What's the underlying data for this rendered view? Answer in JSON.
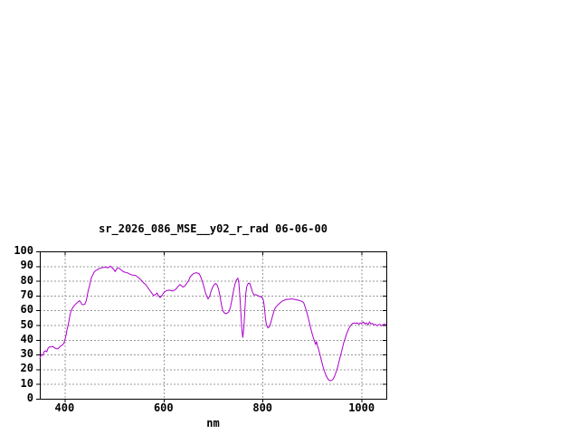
{
  "window": {
    "background_color": "#ffffff"
  },
  "chart_data": {
    "type": "line",
    "title": "sr_2026_086_MSE__y02_r_rad 06-06-00",
    "xlabel": "nm",
    "ylabel": "",
    "xlim": [
      350,
      1050
    ],
    "ylim": [
      0,
      100
    ],
    "x_ticks": [
      400,
      600,
      800,
      1000
    ],
    "x_tick_labels": [
      "400",
      "600",
      "800",
      "1000"
    ],
    "y_ticks": [
      0,
      10,
      20,
      30,
      40,
      50,
      60,
      70,
      80,
      90,
      100
    ],
    "y_tick_labels": [
      "0",
      "10",
      "20",
      "30",
      "40",
      "50",
      "60",
      "70",
      "80",
      "90",
      "100"
    ],
    "grid": true,
    "grid_color": "#999999",
    "frame_color": "#000000",
    "line_color": "#aa00cc",
    "series": [
      {
        "x": [
          350,
          353,
          356,
          359,
          362,
          364,
          367,
          370,
          373,
          376,
          379,
          383,
          387,
          390,
          393,
          396,
          399,
          401,
          403,
          405,
          407,
          409,
          411,
          413,
          415,
          418,
          421,
          424,
          427,
          430,
          432,
          435,
          438,
          441,
          444,
          446,
          448,
          450,
          452,
          454,
          457,
          460,
          463,
          466,
          469,
          472,
          475,
          478,
          481,
          484,
          487,
          490,
          493,
          496,
          499,
          502,
          505,
          508,
          511,
          514,
          517,
          520,
          524,
          528,
          532,
          536,
          540,
          544,
          548,
          552,
          556,
          560,
          564,
          568,
          572,
          576,
          580,
          584,
          587,
          590,
          593,
          596,
          600,
          603,
          606,
          609,
          612,
          615,
          618,
          621,
          624,
          627,
          630,
          633,
          636,
          639,
          642,
          645,
          648,
          651,
          654,
          657,
          660,
          663,
          666,
          669,
          672,
          675,
          678,
          681,
          684,
          687,
          690,
          693,
          696,
          699,
          702,
          705,
          708,
          711,
          714,
          717,
          720,
          723,
          726,
          729,
          732,
          735,
          738,
          741,
          744,
          747,
          750,
          752,
          754,
          756,
          758,
          760,
          762,
          764,
          766,
          768,
          771,
          774,
          777,
          780,
          783,
          786,
          789,
          792,
          795,
          798,
          800,
          802,
          804,
          806,
          808,
          811,
          814,
          817,
          820,
          823,
          826,
          829,
          832,
          836,
          840,
          844,
          848,
          852,
          856,
          860,
          864,
          868,
          872,
          876,
          880,
          883,
          886,
          889,
          892,
          895,
          898,
          901,
          904,
          907,
          909,
          911,
          913,
          916,
          919,
          922,
          925,
          928,
          931,
          934,
          937,
          940,
          943,
          946,
          949,
          952,
          955,
          958,
          961,
          964,
          967,
          970,
          973,
          976,
          979,
          982,
          985,
          988,
          991,
          994,
          997,
          1000,
          1004,
          1007,
          1010,
          1013,
          1016,
          1019,
          1022,
          1025,
          1028,
          1031,
          1034,
          1037,
          1040,
          1043,
          1046,
          1049,
          1050
        ],
        "y": [
          27,
          30,
          29.5,
          32,
          32.5,
          31.9,
          34.5,
          35.3,
          35,
          35.5,
          34.7,
          33.9,
          33.9,
          35,
          36,
          36.5,
          38,
          40.5,
          43,
          47,
          49.5,
          53,
          57,
          59.5,
          61,
          62.5,
          63.7,
          64.7,
          65.6,
          66.5,
          65.8,
          64,
          63.8,
          64.2,
          66.7,
          70,
          73.7,
          76,
          79,
          81.8,
          84,
          86,
          87,
          87.5,
          88.2,
          88.5,
          88.9,
          89,
          89.2,
          89.4,
          88.8,
          89.2,
          90,
          88.8,
          87.9,
          86.3,
          87.9,
          88.9,
          88.3,
          87.5,
          86.6,
          86,
          85.7,
          85.3,
          84.5,
          84,
          83.8,
          83.5,
          82.5,
          81.5,
          80,
          78.5,
          77.5,
          75.5,
          73.5,
          71.7,
          70,
          70.8,
          71.7,
          69.7,
          68.7,
          69.7,
          71.7,
          72.7,
          73.3,
          73.6,
          73.7,
          73.4,
          73.1,
          73.5,
          74.1,
          75.2,
          76.5,
          77.4,
          76.8,
          75.8,
          76.2,
          77.4,
          78.8,
          80.5,
          82.8,
          83.8,
          84.8,
          85.2,
          85.5,
          85.2,
          84.8,
          82.8,
          79.8,
          76.8,
          72.7,
          69.7,
          67.7,
          69.5,
          73,
          75.5,
          77.3,
          78.2,
          77.3,
          74.5,
          69.7,
          63.6,
          59.6,
          58.2,
          57.6,
          58.2,
          59,
          62,
          67,
          72.5,
          77.5,
          80.4,
          81.8,
          78.5,
          71,
          60,
          48.5,
          41.5,
          47,
          58,
          71,
          76,
          78.2,
          78.4,
          75.3,
          72,
          70.3,
          70.7,
          70.2,
          69.7,
          69.3,
          68.9,
          68.3,
          66.5,
          61.2,
          54.1,
          50.1,
          48.1,
          48.9,
          52,
          56,
          59.5,
          61.8,
          63,
          64,
          65.2,
          66.3,
          66.9,
          67.5,
          67.4,
          67.6,
          67.7,
          67.5,
          67.2,
          66.9,
          66.5,
          65.9,
          65.3,
          62.2,
          59.2,
          55.2,
          51.1,
          47.1,
          43,
          40,
          37,
          38.6,
          35.9,
          33.9,
          29.9,
          25.9,
          21.8,
          18.8,
          16,
          14,
          12.7,
          12.2,
          12.5,
          13.5,
          15.8,
          18.4,
          21.8,
          25.9,
          29.9,
          33.9,
          38,
          41,
          44.1,
          46.7,
          48.7,
          50.1,
          51.1,
          51.5,
          51.1,
          51.5,
          50.5,
          51.5,
          51.1,
          52.1,
          50.7,
          51.5,
          50.1,
          52.1,
          50.7,
          51.1,
          50.1,
          50.5,
          49.5,
          50.1,
          50.5,
          49.5,
          50.1,
          50.7,
          50.1,
          50.3
        ]
      }
    ]
  }
}
